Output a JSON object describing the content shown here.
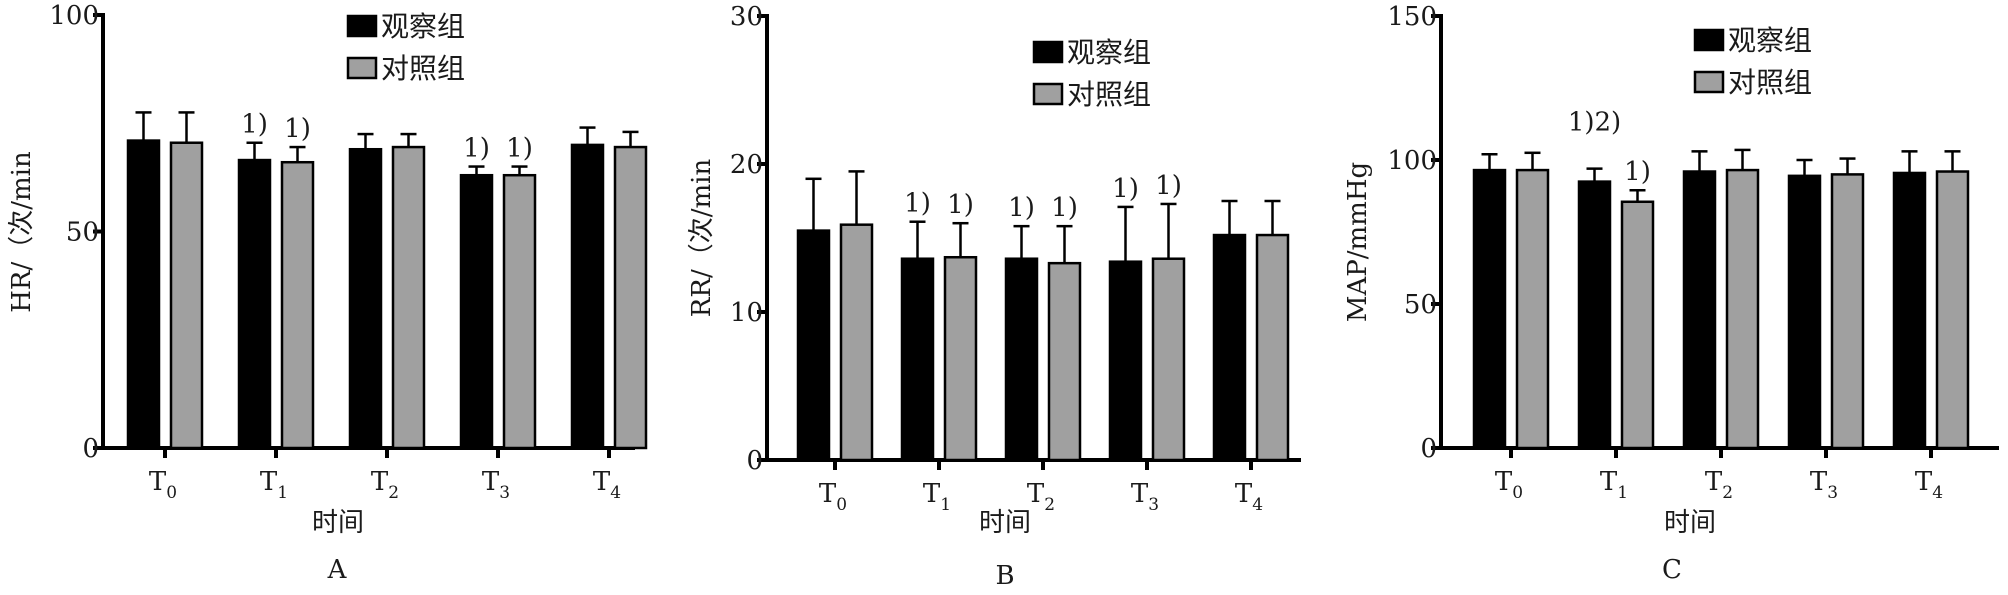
{
  "chart_data": [
    {
      "type": "bar",
      "panel_label": "A",
      "ylabel": "HR/（次/min",
      "xlabel": "时间",
      "categories": [
        {
          "base": "T",
          "sub": "0"
        },
        {
          "base": "T",
          "sub": "1"
        },
        {
          "base": "T",
          "sub": "2"
        },
        {
          "base": "T",
          "sub": "3"
        },
        {
          "base": "T",
          "sub": "4"
        }
      ],
      "ylim": [
        0,
        100
      ],
      "yticks": [
        0,
        50,
        100
      ],
      "grid": false,
      "legend_position": "top-center",
      "series": [
        {
          "name": "观察组",
          "color": "#000000",
          "values": [
            71,
            66.5,
            69,
            63,
            70
          ],
          "errors": [
            6.5,
            4,
            3.5,
            2,
            4
          ]
        },
        {
          "name": "对照组",
          "color": "#a0a0a0",
          "values": [
            70.5,
            66,
            69.5,
            63,
            69.5
          ],
          "errors": [
            7,
            3.5,
            3,
            2,
            3.5
          ]
        }
      ],
      "annotations": [
        {
          "category_index": 1,
          "series_index": 0,
          "text": "1)"
        },
        {
          "category_index": 1,
          "series_index": 1,
          "text": "1)"
        },
        {
          "category_index": 3,
          "series_index": 0,
          "text": "1)"
        },
        {
          "category_index": 3,
          "series_index": 1,
          "text": "1)"
        }
      ]
    },
    {
      "type": "bar",
      "panel_label": "B",
      "ylabel": "RR/（次/min",
      "xlabel": "时间",
      "categories": [
        {
          "base": "T",
          "sub": "0"
        },
        {
          "base": "T",
          "sub": "1"
        },
        {
          "base": "T",
          "sub": "2"
        },
        {
          "base": "T",
          "sub": "3"
        },
        {
          "base": "T",
          "sub": "4"
        }
      ],
      "ylim": [
        0,
        30
      ],
      "yticks": [
        0,
        10,
        20,
        30
      ],
      "grid": false,
      "legend_position": "top-right",
      "series": [
        {
          "name": "观察组",
          "color": "#000000",
          "values": [
            15.5,
            13.6,
            13.6,
            13.4,
            15.2
          ],
          "errors": [
            3.5,
            2.5,
            2.2,
            3.7,
            2.3
          ]
        },
        {
          "name": "对照组",
          "color": "#a0a0a0",
          "values": [
            15.9,
            13.7,
            13.3,
            13.6,
            15.2
          ],
          "errors": [
            3.6,
            2.3,
            2.5,
            3.7,
            2.3
          ]
        }
      ],
      "annotations": [
        {
          "category_index": 1,
          "series_index": 0,
          "text": "1)"
        },
        {
          "category_index": 1,
          "series_index": 1,
          "text": "1)"
        },
        {
          "category_index": 2,
          "series_index": 0,
          "text": "1)"
        },
        {
          "category_index": 2,
          "series_index": 1,
          "text": "1)"
        },
        {
          "category_index": 3,
          "series_index": 0,
          "text": "1)"
        },
        {
          "category_index": 3,
          "series_index": 1,
          "text": "1)"
        }
      ]
    },
    {
      "type": "bar",
      "panel_label": "C",
      "ylabel": "MAP/mmHg",
      "xlabel": "时间",
      "categories": [
        {
          "base": "T",
          "sub": "0"
        },
        {
          "base": "T",
          "sub": "1"
        },
        {
          "base": "T",
          "sub": "2"
        },
        {
          "base": "T",
          "sub": "3"
        },
        {
          "base": "T",
          "sub": "4"
        }
      ],
      "ylim": [
        0,
        150
      ],
      "yticks": [
        0,
        50,
        100,
        150
      ],
      "grid": false,
      "legend_position": "top-right",
      "series": [
        {
          "name": "观察组",
          "color": "#000000",
          "values": [
            96.5,
            92.5,
            96,
            94.5,
            95.5
          ],
          "errors": [
            5.5,
            4.5,
            7,
            5.5,
            7.5
          ]
        },
        {
          "name": "对照组",
          "color": "#a0a0a0",
          "values": [
            96.5,
            85.5,
            96.5,
            95,
            96
          ],
          "errors": [
            6,
            4,
            7,
            5.5,
            7
          ]
        }
      ],
      "annotations": [
        {
          "category_index": 1,
          "series_index": 0,
          "text": "1)2)"
        },
        {
          "category_index": 1,
          "series_index": 1,
          "text": "1)"
        }
      ]
    }
  ]
}
